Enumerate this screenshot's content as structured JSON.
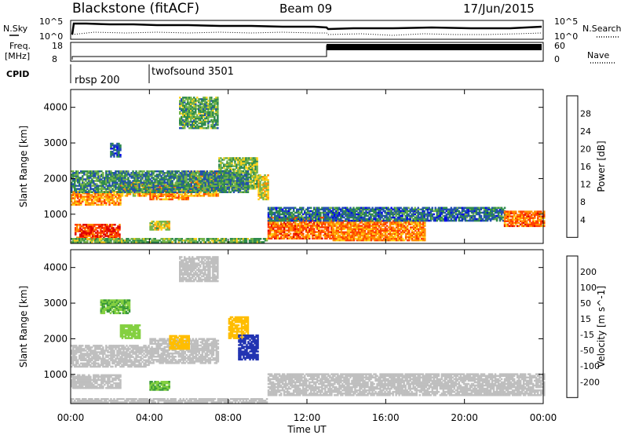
{
  "header": {
    "station": "Blackstone (fitACF)",
    "beam": "Beam 09",
    "date": "17/Jun/2015"
  },
  "top_panels": {
    "nsky_label": "N.Sky",
    "nsearch_label": "N.Search",
    "count_ticks": [
      "10^5",
      "10^0"
    ],
    "freq_label_1": "Freq.",
    "freq_label_2": "[MHz]",
    "freq_ticks": [
      "18",
      "8"
    ],
    "nave_label": "Nave",
    "nave_ticks": [
      "60",
      "0"
    ],
    "cpid_label": "CPID",
    "cpid_segments": [
      {
        "label": "rbsp 200",
        "start_hour": 0
      },
      {
        "label": "twofsound 3501",
        "start_hour": 4
      }
    ]
  },
  "chart_data": [
    {
      "type": "heatmap",
      "quantity": "power",
      "ylabel": "Slant Range [km]",
      "xlabel": "",
      "xlim_hours": [
        0,
        24
      ],
      "ylim": [
        180,
        4500
      ],
      "yticks": [
        "4000",
        "3000",
        "2000",
        "1000"
      ],
      "colorbar": {
        "label": "Power [dB]",
        "ticks": [
          "28",
          "24",
          "20",
          "16",
          "12",
          "8",
          "4"
        ],
        "colors": [
          "#0000ee",
          "#224fb0",
          "#2f8a4e",
          "#74b44a",
          "#ffd21a",
          "#ff8d00",
          "#ff4000",
          "#e00000"
        ],
        "range": [
          0,
          32
        ]
      },
      "bands": [
        {
          "h0": 0.0,
          "h1": 2.5,
          "r0": 1250,
          "r1": 1650,
          "v": 22
        },
        {
          "h0": 2.5,
          "h1": 4.0,
          "r0": 1500,
          "r1": 1900,
          "v": 20
        },
        {
          "h0": 4.0,
          "h1": 6.0,
          "r0": 1400,
          "r1": 1850,
          "v": 22
        },
        {
          "h0": 6.0,
          "h1": 7.5,
          "r0": 1500,
          "r1": 2200,
          "v": 21
        },
        {
          "h0": 7.5,
          "h1": 9.5,
          "r0": 1700,
          "r1": 2600,
          "v": 14
        },
        {
          "h0": 0.0,
          "h1": 9.0,
          "r0": 1600,
          "r1": 2200,
          "v": 10
        },
        {
          "h0": 9.5,
          "h1": 10.0,
          "r0": 1400,
          "r1": 2100,
          "v": 17
        },
        {
          "h0": 0.2,
          "h1": 2.5,
          "r0": 280,
          "r1": 720,
          "v": 27
        },
        {
          "h0": 4.0,
          "h1": 5.0,
          "r0": 550,
          "r1": 800,
          "v": 16
        },
        {
          "h0": 10.0,
          "h1": 13.3,
          "r0": 300,
          "r1": 900,
          "v": 24
        },
        {
          "h0": 13.3,
          "h1": 18.0,
          "r0": 250,
          "r1": 800,
          "v": 23
        },
        {
          "h0": 10.0,
          "h1": 22.0,
          "r0": 800,
          "r1": 1200,
          "v": 8
        },
        {
          "h0": 22.0,
          "h1": 24.0,
          "r0": 650,
          "r1": 1100,
          "v": 24
        },
        {
          "h0": 0.0,
          "h1": 10.0,
          "r0": 200,
          "r1": 320,
          "v": 13
        },
        {
          "h0": 2.0,
          "h1": 2.5,
          "r0": 2600,
          "r1": 3000,
          "v": 7
        },
        {
          "h0": 5.5,
          "h1": 7.5,
          "r0": 3400,
          "r1": 4300,
          "v": 12
        }
      ]
    },
    {
      "type": "heatmap",
      "quantity": "velocity",
      "ylabel": "Slant Range [km]",
      "xlabel": "Time UT",
      "xlim_hours": [
        0,
        24
      ],
      "ylim": [
        180,
        4500
      ],
      "xticks": [
        "00:00",
        "04:00",
        "08:00",
        "12:00",
        "16:00",
        "20:00",
        "00:00"
      ],
      "yticks": [
        "4000",
        "3000",
        "2000",
        "1000"
      ],
      "colorbar": {
        "label": "Velocity [m s^-1]",
        "ticks": [
          "200",
          "100",
          "50",
          "15",
          "-15",
          "-50",
          "-100",
          "-200"
        ],
        "colors": [
          "#2234b2",
          "#2f6b5a",
          "#3b9a3a",
          "#84d041",
          "#bfbfbf",
          "#ffbd00",
          "#ff8a00",
          "#ff4a00",
          "#e00000"
        ],
        "range": [
          -250,
          250
        ]
      },
      "bands": [
        {
          "h0": 0.0,
          "h1": 4.0,
          "r0": 1200,
          "r1": 1800,
          "v": 0
        },
        {
          "h0": 4.0,
          "h1": 7.5,
          "r0": 1300,
          "r1": 2000,
          "v": 0
        },
        {
          "h0": 0.0,
          "h1": 2.5,
          "r0": 600,
          "r1": 1000,
          "v": 0
        },
        {
          "h0": 10.0,
          "h1": 24.0,
          "r0": 400,
          "r1": 1000,
          "v": 0
        },
        {
          "h0": 1.5,
          "h1": 3.0,
          "r0": 2700,
          "r1": 3100,
          "v": -80
        },
        {
          "h0": 2.5,
          "h1": 3.5,
          "r0": 2000,
          "r1": 2400,
          "v": -60
        },
        {
          "h0": 4.0,
          "h1": 5.0,
          "r0": 550,
          "r1": 800,
          "v": -80
        },
        {
          "h0": 8.0,
          "h1": 9.0,
          "r0": 2000,
          "r1": 2600,
          "v": 60
        },
        {
          "h0": 8.5,
          "h1": 9.5,
          "r0": 1400,
          "r1": 2100,
          "v": -220
        },
        {
          "h0": 5.5,
          "h1": 7.5,
          "r0": 3600,
          "r1": 4300,
          "v": 0
        },
        {
          "h0": 5.0,
          "h1": 6.0,
          "r0": 1700,
          "r1": 2100,
          "v": 60
        },
        {
          "h0": 0.0,
          "h1": 10.0,
          "r0": 200,
          "r1": 300,
          "v": 0
        }
      ]
    }
  ]
}
